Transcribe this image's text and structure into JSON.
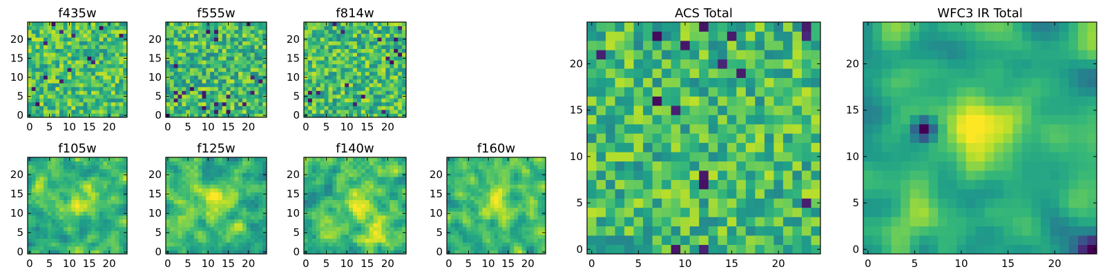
{
  "figure": {
    "background": "#ffffff",
    "colormap": "viridis"
  },
  "chart_data": [
    {
      "type": "heatmap",
      "title": "f435w",
      "grid": [
        25,
        25
      ],
      "xlim": [
        -0.5,
        24.5
      ],
      "ylim": [
        -0.5,
        24.5
      ],
      "xticks": [
        0,
        5,
        10,
        15,
        20
      ],
      "yticks": [
        0,
        5,
        10,
        15,
        20
      ],
      "texture": "fine noise",
      "seed": 11,
      "smooth": 0,
      "mean": 0.7,
      "spread": 0.22,
      "blobs": []
    },
    {
      "type": "heatmap",
      "title": "f555w",
      "grid": [
        25,
        25
      ],
      "xlim": [
        -0.5,
        24.5
      ],
      "ylim": [
        -0.5,
        24.5
      ],
      "xticks": [
        0,
        5,
        10,
        15,
        20
      ],
      "yticks": [
        0,
        5,
        10,
        15,
        20
      ],
      "texture": "fine noise",
      "seed": 23,
      "smooth": 0,
      "mean": 0.68,
      "spread": 0.24,
      "blobs": []
    },
    {
      "type": "heatmap",
      "title": "f814w",
      "grid": [
        25,
        25
      ],
      "xlim": [
        -0.5,
        24.5
      ],
      "ylim": [
        -0.5,
        24.5
      ],
      "xticks": [
        0,
        5,
        10,
        15,
        20
      ],
      "yticks": [
        0,
        5,
        10,
        15,
        20
      ],
      "texture": "fine noise",
      "seed": 37,
      "smooth": 0,
      "mean": 0.69,
      "spread": 0.23,
      "blobs": []
    },
    {
      "type": "heatmap",
      "title": "f105w",
      "grid": [
        25,
        25
      ],
      "xlim": [
        -0.5,
        24.5
      ],
      "ylim": [
        -0.5,
        24.5
      ],
      "xticks": [
        0,
        5,
        10,
        15,
        20
      ],
      "yticks": [
        0,
        5,
        10,
        15,
        20
      ],
      "texture": "smooth noise with central bright source",
      "seed": 41,
      "smooth": 1,
      "mean": 0.66,
      "spread": 0.26,
      "blobs": [
        {
          "x": 13,
          "y": 13,
          "r": 3,
          "amp": 0.3
        },
        {
          "x": 3,
          "y": 16,
          "r": 2,
          "amp": 0.2
        }
      ]
    },
    {
      "type": "heatmap",
      "title": "f125w",
      "grid": [
        25,
        25
      ],
      "xlim": [
        -0.5,
        24.5
      ],
      "ylim": [
        -0.5,
        24.5
      ],
      "xticks": [
        0,
        5,
        10,
        15,
        20
      ],
      "yticks": [
        0,
        5,
        10,
        15,
        20
      ],
      "texture": "smooth noise with central bright source",
      "seed": 53,
      "smooth": 1,
      "mean": 0.66,
      "spread": 0.26,
      "blobs": [
        {
          "x": 12,
          "y": 13,
          "r": 3,
          "amp": 0.25
        }
      ]
    },
    {
      "type": "heatmap",
      "title": "f140w",
      "grid": [
        25,
        25
      ],
      "xlim": [
        -0.5,
        24.5
      ],
      "ylim": [
        -0.5,
        24.5
      ],
      "xticks": [
        0,
        5,
        10,
        15,
        20
      ],
      "yticks": [
        0,
        5,
        10,
        15,
        20
      ],
      "texture": "smooth noise with central bright source",
      "seed": 67,
      "smooth": 1,
      "mean": 0.66,
      "spread": 0.26,
      "blobs": [
        {
          "x": 13,
          "y": 13,
          "r": 3,
          "amp": 0.25
        },
        {
          "x": 18,
          "y": 4,
          "r": 3,
          "amp": 0.2
        }
      ]
    },
    {
      "type": "heatmap",
      "title": "f160w",
      "grid": [
        25,
        25
      ],
      "xlim": [
        -0.5,
        24.5
      ],
      "ylim": [
        -0.5,
        24.5
      ],
      "xticks": [
        0,
        5,
        10,
        15,
        20
      ],
      "yticks": [
        0,
        5,
        10,
        15,
        20
      ],
      "texture": "smooth noise with central bright source",
      "seed": 79,
      "smooth": 1,
      "mean": 0.66,
      "spread": 0.26,
      "blobs": [
        {
          "x": 12,
          "y": 13,
          "r": 3,
          "amp": 0.28
        }
      ]
    },
    {
      "type": "heatmap",
      "title": "ACS Total",
      "grid": [
        25,
        25
      ],
      "xlim": [
        -0.5,
        24.5
      ],
      "ylim": [
        -0.5,
        24.5
      ],
      "xticks": [
        0,
        5,
        10,
        15,
        20
      ],
      "yticks": [
        0,
        5,
        10,
        15,
        20
      ],
      "texture": "coarse noise",
      "seed": 97,
      "smooth": 0,
      "mean": 0.68,
      "spread": 0.22,
      "blobs": []
    },
    {
      "type": "heatmap",
      "title": "WFC3 IR Total",
      "grid": [
        25,
        25
      ],
      "xlim": [
        -0.5,
        24.5
      ],
      "ylim": [
        -0.5,
        24.5
      ],
      "xticks": [
        0,
        5,
        10,
        15,
        20
      ],
      "yticks": [
        0,
        5,
        10,
        15,
        20
      ],
      "texture": "smooth field, bright central source, dark spot left of centre",
      "seed": 113,
      "smooth": 2,
      "mean": 0.62,
      "spread": 0.22,
      "blobs": [
        {
          "x": 12,
          "y": 13,
          "r": 2.6,
          "amp": 0.38
        },
        {
          "x": 5,
          "y": 14,
          "r": 1.4,
          "amp": 0.18
        },
        {
          "x": 6,
          "y": 13,
          "r": 0.9,
          "amp": -0.75
        },
        {
          "x": 6,
          "y": 4,
          "r": 1.5,
          "amp": 0.28
        },
        {
          "x": 24,
          "y": 0,
          "r": 1.2,
          "amp": -0.6
        }
      ]
    }
  ]
}
